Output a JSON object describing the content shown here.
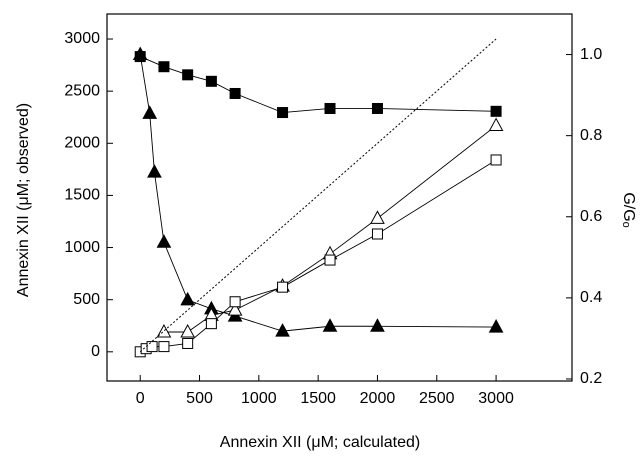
{
  "chart_data": {
    "type": "line",
    "x_label": "Annexin XII (μM; calculated)",
    "y_label": "Annexin XII (μM; observed)",
    "y2_label": "G/Gₒ",
    "xlim": [
      -280,
      3640
    ],
    "ylim": [
      -280,
      3240
    ],
    "y2lim": [
      0.195,
      1.1
    ],
    "xticks": [
      0,
      500,
      1000,
      1500,
      2000,
      2500,
      3000
    ],
    "yticks": [
      0,
      500,
      1000,
      1500,
      2000,
      2500,
      3000
    ],
    "y2ticks": [
      {
        "value": 0.2,
        "label": "0.2"
      },
      {
        "value": 0.4,
        "label": "0.4"
      },
      {
        "value": 0.6,
        "label": "0.6"
      },
      {
        "value": 0.8,
        "label": "0.8"
      },
      {
        "value": 1.0,
        "label": "1.0"
      }
    ],
    "series": [
      {
        "color": "#000000",
        "marker": "square",
        "filled": true,
        "axis": "y2",
        "x": [
          0,
          200,
          400,
          600,
          800,
          1200,
          1600,
          2000,
          3000
        ],
        "values": [
          0.995,
          0.97,
          0.95,
          0.934,
          0.904,
          0.857,
          0.867,
          0.867,
          0.86
        ]
      },
      {
        "color": "#000000",
        "marker": "triangle",
        "filled": true,
        "axis": "y2",
        "x": [
          0,
          80,
          120,
          200,
          400,
          600,
          800,
          1200,
          1600,
          2000,
          3000
        ],
        "values": [
          1.0,
          0.855,
          0.71,
          0.537,
          0.395,
          0.373,
          0.355,
          0.318,
          0.33,
          0.33,
          0.328
        ]
      },
      {
        "color": "#000000",
        "marker": "triangle",
        "filled": false,
        "x": [
          200,
          400,
          600,
          800,
          1200,
          1600,
          2000,
          3000
        ],
        "values": [
          190,
          190,
          350,
          400,
          630,
          940,
          1280,
          2170
        ]
      },
      {
        "color": "#000000",
        "marker": "square",
        "filled": false,
        "x": [
          0,
          50,
          100,
          200,
          400,
          600,
          800,
          1200,
          1600,
          2000,
          3000
        ],
        "values": [
          0,
          30,
          50,
          50,
          80,
          270,
          480,
          620,
          880,
          1130,
          1840
        ]
      },
      {
        "color": "#000000",
        "marker": "none",
        "dash": "2,2",
        "x": [
          0,
          3000
        ],
        "values": [
          0,
          3000
        ]
      }
    ]
  }
}
